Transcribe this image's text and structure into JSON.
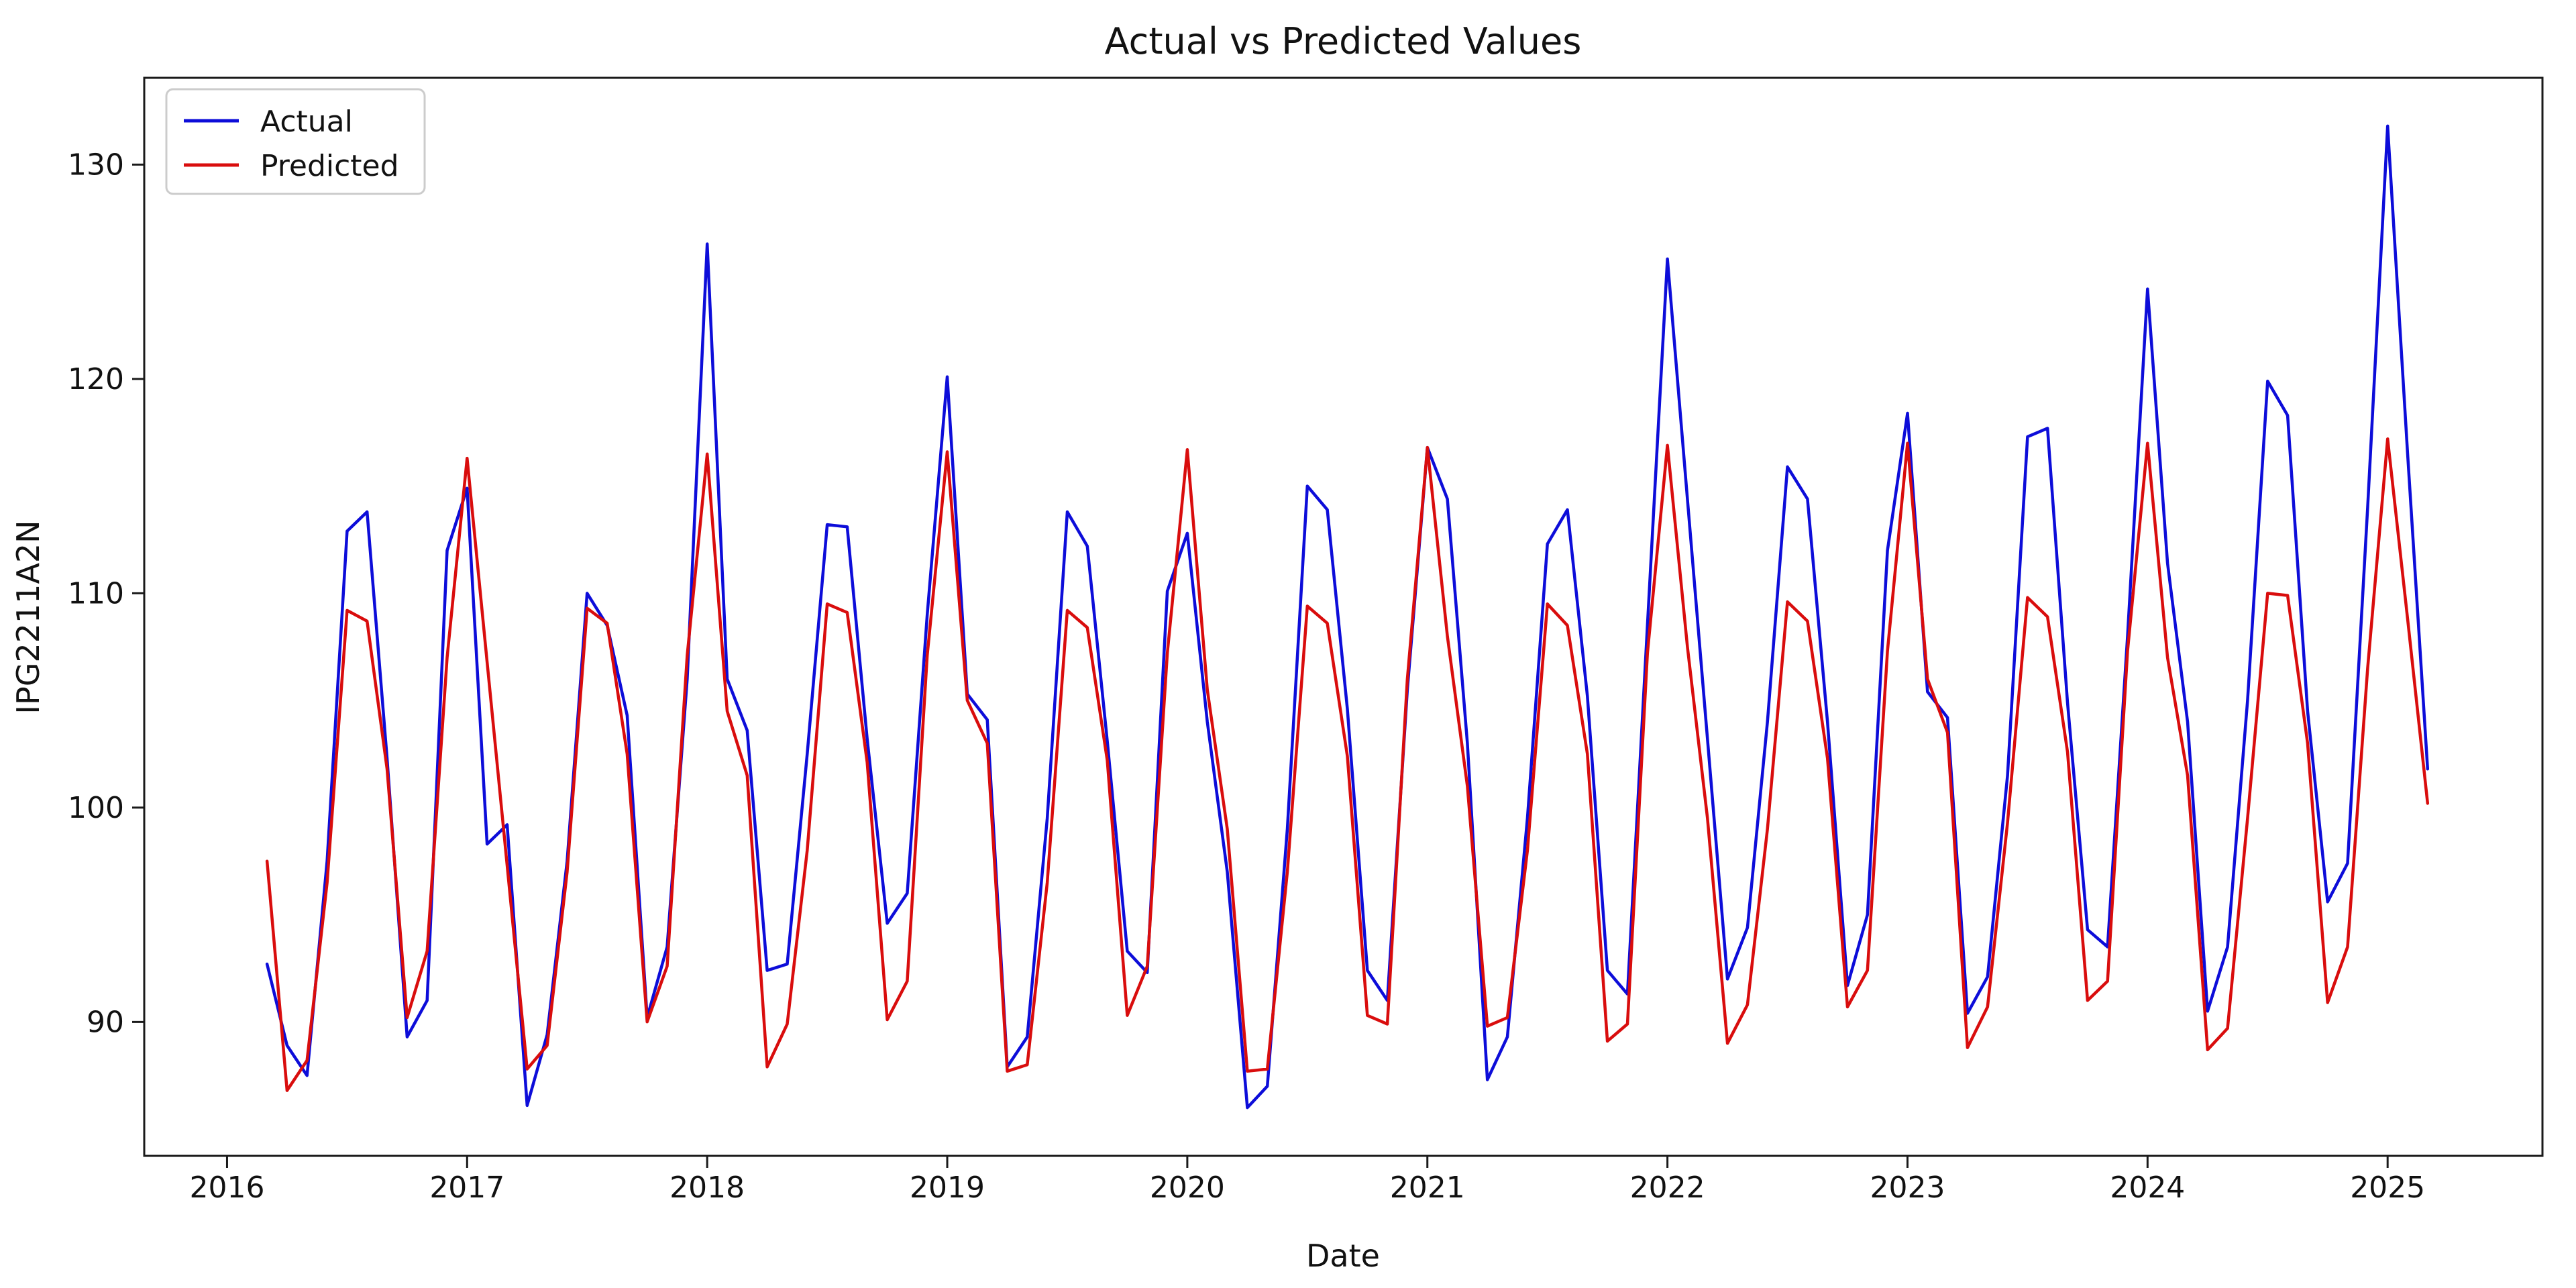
{
  "figure": {
    "background": "#ffffff",
    "spine_color": "#1a1a1a"
  },
  "axes": {
    "xlim": [
      2015.655,
      2025.645
    ],
    "ylim": [
      83.75,
      134.05
    ],
    "xticks": [
      2016,
      2017,
      2018,
      2019,
      2020,
      2021,
      2022,
      2023,
      2024,
      2025
    ],
    "yticks": [
      90,
      100,
      110,
      120,
      130
    ],
    "grid": false
  },
  "legend": {
    "position": "upper left",
    "border_color": "#cccccc"
  },
  "chart_data": {
    "type": "line",
    "title": "Actual vs Predicted Values",
    "xlabel": "Date",
    "ylabel": "IPG2211A2N",
    "ylim": [
      83.75,
      134.05
    ],
    "legend_position": "upper left",
    "grid": false,
    "x": [
      "2016-03",
      "2016-04",
      "2016-05",
      "2016-06",
      "2016-07",
      "2016-08",
      "2016-09",
      "2016-10",
      "2016-11",
      "2016-12",
      "2017-01",
      "2017-02",
      "2017-03",
      "2017-04",
      "2017-05",
      "2017-06",
      "2017-07",
      "2017-08",
      "2017-09",
      "2017-10",
      "2017-11",
      "2017-12",
      "2018-01",
      "2018-02",
      "2018-03",
      "2018-04",
      "2018-05",
      "2018-06",
      "2018-07",
      "2018-08",
      "2018-09",
      "2018-10",
      "2018-11",
      "2018-12",
      "2019-01",
      "2019-02",
      "2019-03",
      "2019-04",
      "2019-05",
      "2019-06",
      "2019-07",
      "2019-08",
      "2019-09",
      "2019-10",
      "2019-11",
      "2019-12",
      "2020-01",
      "2020-02",
      "2020-03",
      "2020-04",
      "2020-05",
      "2020-06",
      "2020-07",
      "2020-08",
      "2020-09",
      "2020-10",
      "2020-11",
      "2020-12",
      "2021-01",
      "2021-02",
      "2021-03",
      "2021-04",
      "2021-05",
      "2021-06",
      "2021-07",
      "2021-08",
      "2021-09",
      "2021-10",
      "2021-11",
      "2021-12",
      "2022-01",
      "2022-02",
      "2022-03",
      "2022-04",
      "2022-05",
      "2022-06",
      "2022-07",
      "2022-08",
      "2022-09",
      "2022-10",
      "2022-11",
      "2022-12",
      "2023-01",
      "2023-02",
      "2023-03",
      "2023-04",
      "2023-05",
      "2023-06",
      "2023-07",
      "2023-08",
      "2023-09",
      "2023-10",
      "2023-11",
      "2023-12",
      "2024-01",
      "2024-02",
      "2024-03",
      "2024-04",
      "2024-05",
      "2024-06",
      "2024-07",
      "2024-08",
      "2024-09",
      "2024-10",
      "2024-11",
      "2024-12",
      "2025-01",
      "2025-02",
      "2025-03"
    ],
    "series": [
      {
        "name": "Actual",
        "color": "#0d0dd9",
        "values": [
          92.7,
          88.9,
          87.5,
          97.5,
          112.9,
          113.8,
          102.3,
          89.3,
          91.0,
          112.0,
          114.9,
          98.3,
          99.2,
          86.1,
          89.4,
          97.5,
          110.0,
          108.5,
          104.3,
          90.2,
          93.5,
          106.0,
          126.3,
          106.0,
          103.6,
          92.4,
          92.7,
          102.5,
          113.2,
          113.1,
          103.2,
          94.6,
          96.0,
          109.0,
          120.1,
          105.3,
          104.1,
          87.9,
          89.3,
          99.5,
          113.8,
          112.2,
          103.1,
          93.3,
          92.3,
          110.1,
          112.8,
          104.0,
          97.0,
          86.0,
          87.0,
          99.0,
          115.0,
          113.9,
          104.6,
          92.4,
          91.0,
          105.5,
          116.8,
          114.4,
          103.0,
          87.3,
          89.3,
          99.5,
          112.3,
          113.9,
          105.2,
          92.4,
          91.3,
          108.5,
          125.6,
          114.4,
          103.2,
          92.0,
          94.4,
          104.0,
          115.9,
          114.4,
          104.0,
          91.7,
          95.0,
          112.0,
          118.4,
          105.4,
          104.2,
          90.4,
          92.1,
          101.5,
          117.3,
          117.7,
          104.9,
          94.3,
          93.5,
          108.0,
          124.2,
          111.4,
          104.0,
          90.5,
          93.5,
          105.0,
          119.9,
          118.3,
          104.5,
          95.6,
          97.4,
          114.0,
          131.8,
          116.5,
          101.8
        ]
      },
      {
        "name": "Predicted",
        "color": "#d90d0d",
        "values": [
          97.5,
          86.8,
          88.2,
          96.5,
          109.2,
          108.7,
          101.8,
          90.2,
          93.3,
          107.0,
          116.3,
          106.8,
          97.3,
          87.8,
          88.9,
          97.0,
          109.3,
          108.6,
          102.5,
          90.0,
          92.6,
          107.1,
          116.5,
          104.5,
          101.5,
          87.9,
          89.9,
          98.0,
          109.5,
          109.1,
          102.1,
          90.1,
          91.9,
          107.1,
          116.6,
          105.0,
          103.0,
          87.7,
          88.0,
          96.5,
          109.2,
          108.4,
          102.2,
          90.3,
          92.6,
          107.2,
          116.7,
          105.5,
          99.0,
          87.7,
          87.8,
          97.0,
          109.4,
          108.6,
          102.4,
          90.3,
          89.9,
          106.0,
          116.8,
          108.0,
          101.0,
          89.8,
          90.2,
          98.0,
          109.5,
          108.5,
          102.5,
          89.1,
          89.9,
          107.2,
          116.9,
          107.5,
          99.5,
          89.0,
          90.8,
          99.0,
          109.6,
          108.7,
          102.3,
          90.7,
          92.4,
          107.3,
          117.0,
          106.0,
          103.5,
          88.8,
          90.7,
          99.3,
          109.8,
          108.9,
          102.6,
          91.0,
          91.9,
          107.3,
          117.0,
          107.0,
          101.5,
          88.7,
          89.7,
          99.5,
          110.0,
          109.9,
          103.0,
          90.9,
          93.5,
          106.5,
          117.2,
          108.8,
          100.2
        ]
      }
    ]
  }
}
